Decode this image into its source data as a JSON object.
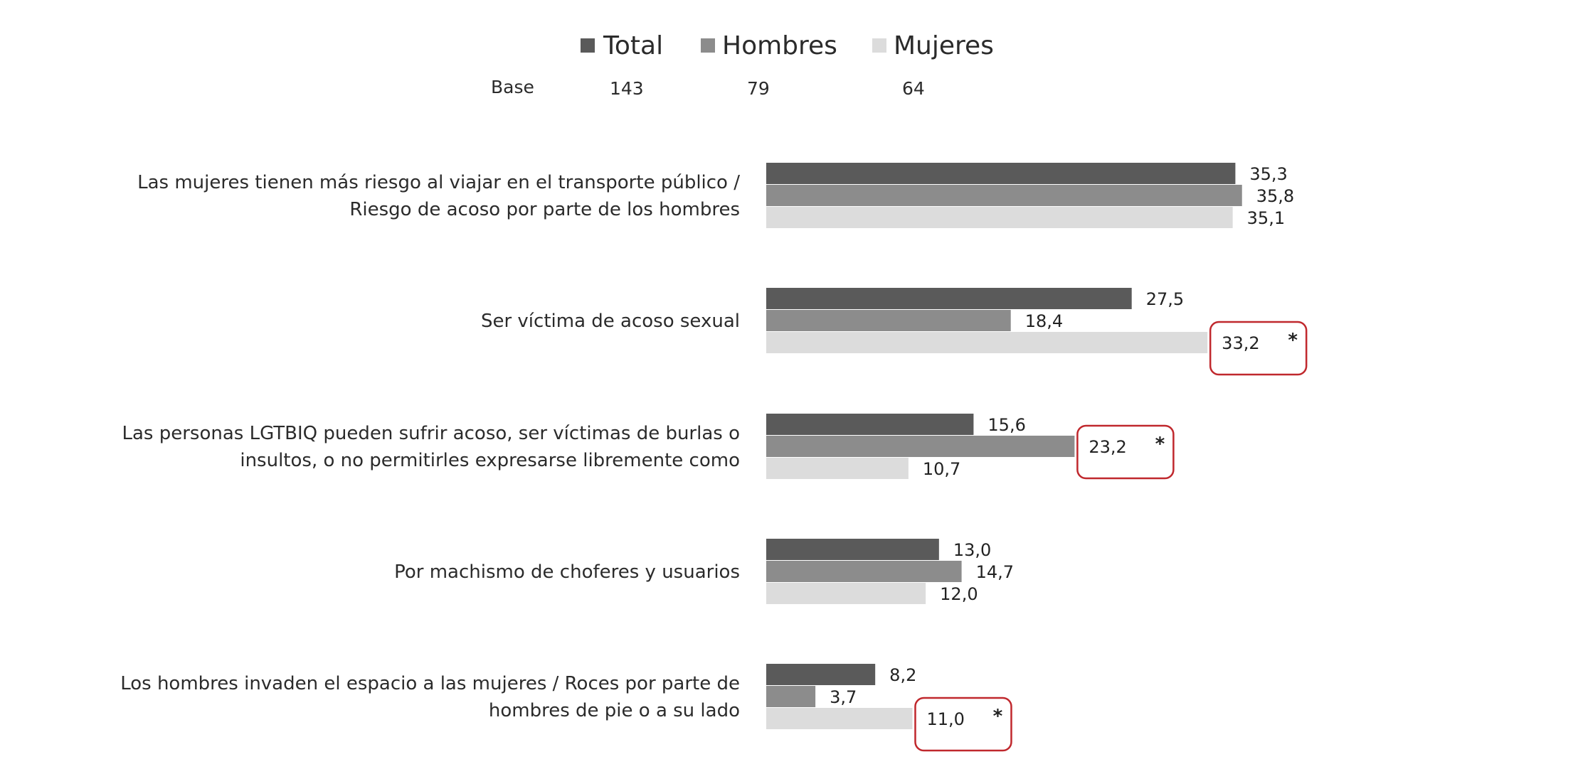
{
  "chart_data": {
    "type": "bar",
    "orientation": "horizontal",
    "legend_position": "top-center",
    "grid": false,
    "xlim": [
      0,
      40
    ],
    "base_label": "Base",
    "categories": [
      [
        "Las mujeres tienen más riesgo al viajar en el transporte público /",
        "Riesgo de acoso por parte de los hombres"
      ],
      [
        "Ser víctima de acoso sexual"
      ],
      [
        "Las personas LGTBIQ pueden sufrir acoso, ser víctimas de burlas o",
        "insultos, o no permitirles expresarse libremente como"
      ],
      [
        "Por machismo de choferes y usuarios"
      ],
      [
        "Los hombres invaden el espacio a las mujeres / Roces por parte de",
        "hombres de pie o a su lado"
      ]
    ],
    "series": [
      {
        "name": "Total",
        "base": "143",
        "color": "#5a5a5a",
        "values": [
          35.3,
          27.5,
          15.6,
          13.0,
          8.2
        ],
        "labels": [
          "35,3",
          "27,5",
          "15,6",
          "13,0",
          "8,2"
        ],
        "significant": [
          false,
          false,
          false,
          false,
          false
        ]
      },
      {
        "name": "Hombres",
        "base": "79",
        "color": "#8c8c8c",
        "values": [
          35.8,
          18.4,
          23.2,
          14.7,
          3.7
        ],
        "labels": [
          "35,8",
          "18,4",
          "23,2",
          "14,7",
          "3,7"
        ],
        "significant": [
          false,
          false,
          true,
          false,
          false
        ]
      },
      {
        "name": "Mujeres",
        "base": "64",
        "color": "#dcdcdc",
        "values": [
          35.1,
          33.2,
          10.7,
          12.0,
          11.0
        ],
        "labels": [
          "35,1",
          "33,2",
          "10,7",
          "12,0",
          "11,0"
        ],
        "significant": [
          false,
          true,
          false,
          false,
          true
        ]
      }
    ],
    "significance_marker": "*",
    "highlight_color": "#c0282d"
  }
}
